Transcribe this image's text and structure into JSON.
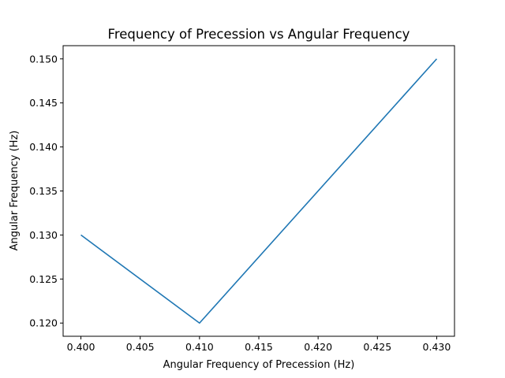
{
  "chart_data": {
    "type": "line",
    "title": "Frequency of Precession vs Angular Frequency",
    "xlabel": "Angular Frequency of Precession (Hz)",
    "ylabel": "Angular Frequency (Hz)",
    "x": [
      0.4,
      0.41,
      0.43
    ],
    "series": [
      {
        "values": [
          0.13,
          0.12,
          0.15
        ]
      }
    ],
    "xlim": [
      0.3985,
      0.4315
    ],
    "ylim": [
      0.1185,
      0.1515
    ],
    "x_ticks": [
      "0.400",
      "0.405",
      "0.410",
      "0.415",
      "0.420",
      "0.425",
      "0.430"
    ],
    "y_ticks": [
      "0.120",
      "0.125",
      "0.130",
      "0.135",
      "0.140",
      "0.145",
      "0.150"
    ],
    "grid": false,
    "line_color": "#1f77b4"
  }
}
